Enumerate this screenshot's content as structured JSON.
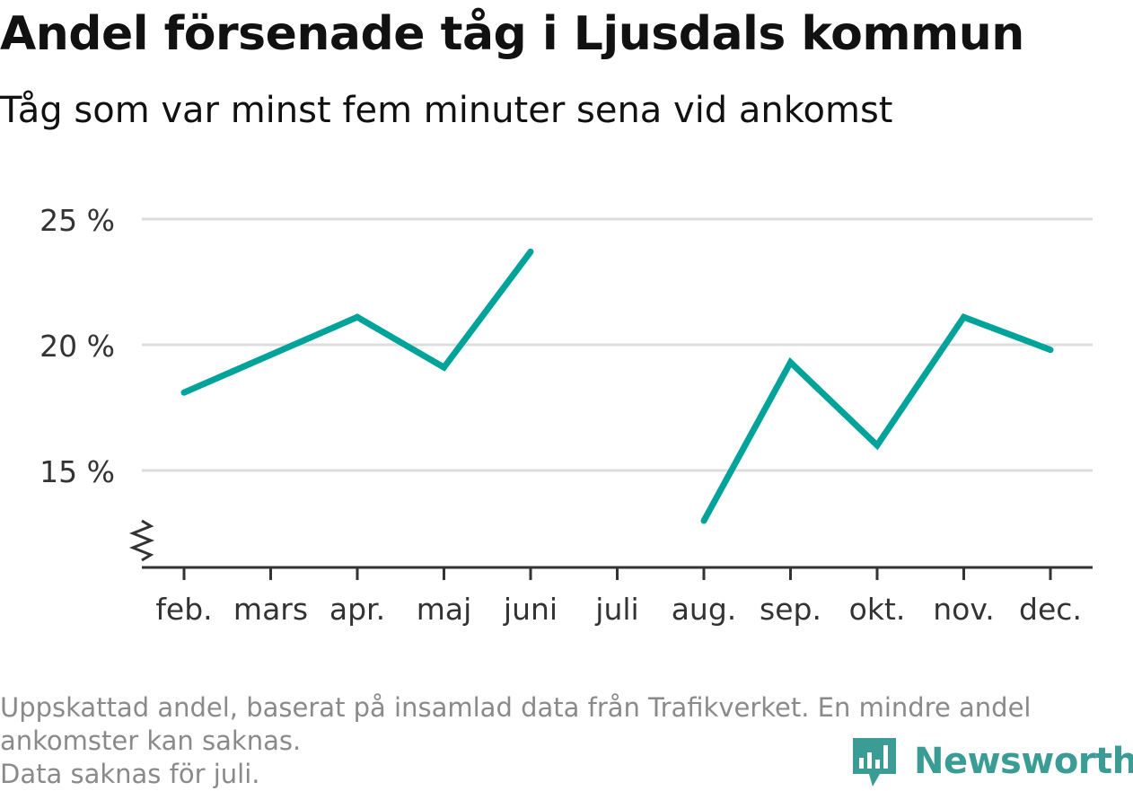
{
  "header": {
    "title": "Andel försenade tåg i Ljusdals kommun",
    "subtitle": "Tåg som var minst fem minuter sena vid ankomst"
  },
  "footnote": {
    "line1": "Uppskattad andel, baserat på insamlad data från Trafikverket. En mindre andel",
    "line2": "ankomster kan saknas.",
    "line3": "Data saknas för juli."
  },
  "brand": {
    "name": "Newsworthy",
    "icon": "newsworthy-logo-icon",
    "color": "#3a9c94"
  },
  "colors": {
    "series": "#00a39a",
    "grid": "#dddddd",
    "axis": "#333333",
    "text": "#333333"
  },
  "chart_data": {
    "type": "line",
    "categories": [
      "feb.",
      "mars",
      "apr.",
      "maj",
      "juni",
      "juli",
      "aug.",
      "sep.",
      "okt.",
      "nov.",
      "dec."
    ],
    "series": [
      {
        "values": [
          18.1,
          19.6,
          21.1,
          19.1,
          23.7,
          null,
          13.0,
          19.3,
          16.0,
          21.1,
          19.8
        ]
      }
    ],
    "y_ticks": [
      15,
      20,
      25
    ],
    "y_tick_labels": [
      "15 %",
      "20 %",
      "25 %"
    ],
    "ylim": [
      11.3,
      25
    ],
    "axis_break": true,
    "grid": true,
    "xlabel": "",
    "ylabel": ""
  }
}
